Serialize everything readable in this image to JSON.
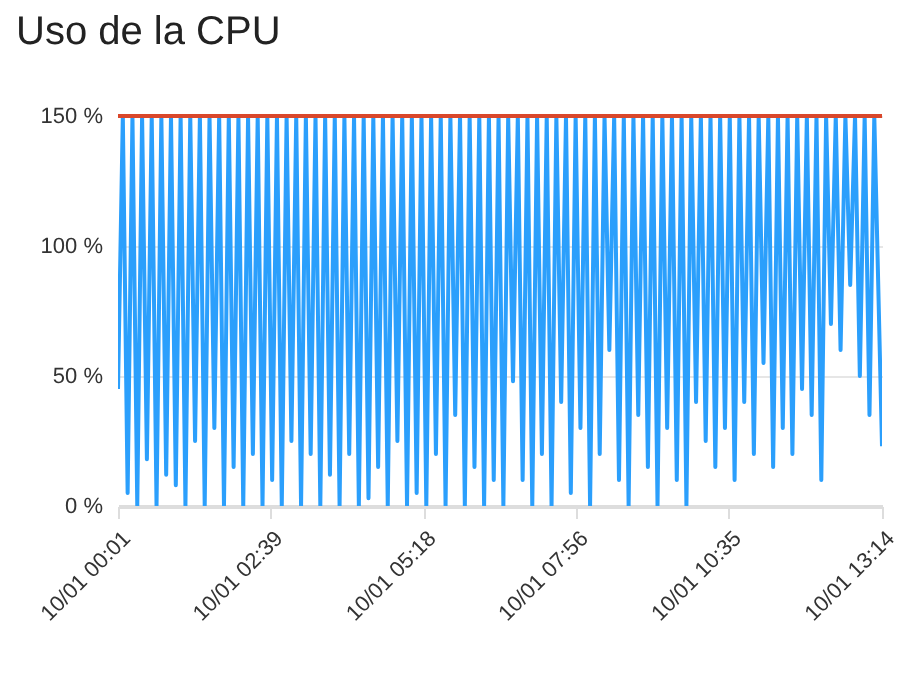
{
  "chart_data": {
    "type": "line",
    "title": "Uso de la CPU",
    "x": [
      "--10-01T00:01",
      "--10-01T00:06",
      "--10-01T00:11",
      "--10-01T00:16",
      "--10-01T00:21",
      "--10-01T00:26",
      "--10-01T00:31",
      "--10-01T00:36",
      "--10-01T00:41",
      "--10-01T00:46",
      "--10-01T00:51",
      "--10-01T00:56",
      "--10-01T01:01",
      "--10-01T01:06",
      "--10-01T01:11",
      "--10-01T01:16",
      "--10-01T01:21",
      "--10-01T01:26",
      "--10-01T01:31",
      "--10-01T01:36",
      "--10-01T01:41",
      "--10-01T01:46",
      "--10-01T01:51",
      "--10-01T01:56",
      "--10-01T02:01",
      "--10-01T02:06",
      "--10-01T02:11",
      "--10-01T02:16",
      "--10-01T02:21",
      "--10-01T02:26",
      "--10-01T02:31",
      "--10-01T02:36",
      "--10-01T02:41",
      "--10-01T02:46",
      "--10-01T02:51",
      "--10-01T02:56",
      "--10-01T03:01",
      "--10-01T03:06",
      "--10-01T03:11",
      "--10-01T03:16",
      "--10-01T03:21",
      "--10-01T03:26",
      "--10-01T03:31",
      "--10-01T03:36",
      "--10-01T03:41",
      "--10-01T03:46",
      "--10-01T03:51",
      "--10-01T03:56",
      "--10-01T04:01",
      "--10-01T04:06",
      "--10-01T04:11",
      "--10-01T04:16",
      "--10-01T04:21",
      "--10-01T04:26",
      "--10-01T04:31",
      "--10-01T04:36",
      "--10-01T04:41",
      "--10-01T04:46",
      "--10-01T04:51",
      "--10-01T04:56",
      "--10-01T05:01",
      "--10-01T05:06",
      "--10-01T05:11",
      "--10-01T05:16",
      "--10-01T05:21",
      "--10-01T05:26",
      "--10-01T05:31",
      "--10-01T05:36",
      "--10-01T05:41",
      "--10-01T05:46",
      "--10-01T05:51",
      "--10-01T05:56",
      "--10-01T06:01",
      "--10-01T06:06",
      "--10-01T06:11",
      "--10-01T06:16",
      "--10-01T06:21",
      "--10-01T06:26",
      "--10-01T06:31",
      "--10-01T06:36",
      "--10-01T06:41",
      "--10-01T06:46",
      "--10-01T06:51",
      "--10-01T06:56",
      "--10-01T07:01",
      "--10-01T07:06",
      "--10-01T07:11",
      "--10-01T07:16",
      "--10-01T07:21",
      "--10-01T07:26",
      "--10-01T07:31",
      "--10-01T07:36",
      "--10-01T07:41",
      "--10-01T07:46",
      "--10-01T07:51",
      "--10-01T07:56",
      "--10-01T08:01",
      "--10-01T08:06",
      "--10-01T08:11",
      "--10-01T08:16",
      "--10-01T08:21",
      "--10-01T08:26",
      "--10-01T08:31",
      "--10-01T08:36",
      "--10-01T08:41",
      "--10-01T08:46",
      "--10-01T08:51",
      "--10-01T08:56",
      "--10-01T09:01",
      "--10-01T09:06",
      "--10-01T09:11",
      "--10-01T09:16",
      "--10-01T09:21",
      "--10-01T09:26",
      "--10-01T09:31",
      "--10-01T09:36",
      "--10-01T09:41",
      "--10-01T09:46",
      "--10-01T09:51",
      "--10-01T09:56",
      "--10-01T10:01",
      "--10-01T10:06",
      "--10-01T10:11",
      "--10-01T10:16",
      "--10-01T10:21",
      "--10-01T10:26",
      "--10-01T10:31",
      "--10-01T10:36",
      "--10-01T10:41",
      "--10-01T10:46",
      "--10-01T10:51",
      "--10-01T10:56",
      "--10-01T11:01",
      "--10-01T11:06",
      "--10-01T11:11",
      "--10-01T11:16",
      "--10-01T11:21",
      "--10-01T11:26",
      "--10-01T11:31",
      "--10-01T11:36",
      "--10-01T11:41",
      "--10-01T11:46",
      "--10-01T11:51",
      "--10-01T11:56",
      "--10-01T12:01",
      "--10-01T12:06",
      "--10-01T12:11",
      "--10-01T12:16",
      "--10-01T12:21",
      "--10-01T12:26",
      "--10-01T12:31",
      "--10-01T12:36",
      "--10-01T12:41",
      "--10-01T12:46",
      "--10-01T12:51",
      "--10-01T12:56",
      "--10-01T13:01",
      "--10-01T13:06",
      "--10-01T13:14"
    ],
    "series": [
      {
        "color": "#2b9ffc",
        "values": [
          45,
          150,
          5,
          150,
          0,
          150,
          18,
          150,
          0,
          150,
          12,
          150,
          8,
          150,
          0,
          150,
          25,
          150,
          0,
          150,
          30,
          150,
          0,
          150,
          15,
          150,
          0,
          150,
          20,
          150,
          0,
          150,
          10,
          150,
          0,
          150,
          25,
          150,
          0,
          150,
          20,
          150,
          0,
          150,
          12,
          150,
          0,
          150,
          20,
          150,
          0,
          150,
          3,
          150,
          15,
          150,
          0,
          150,
          25,
          150,
          0,
          150,
          5,
          150,
          0,
          150,
          20,
          150,
          0,
          150,
          35,
          150,
          0,
          150,
          15,
          150,
          0,
          150,
          10,
          150,
          0,
          150,
          48,
          150,
          10,
          150,
          0,
          150,
          20,
          150,
          0,
          150,
          40,
          150,
          5,
          150,
          30,
          150,
          0,
          150,
          20,
          150,
          60,
          150,
          10,
          150,
          0,
          150,
          35,
          150,
          15,
          150,
          0,
          150,
          30,
          150,
          10,
          150,
          0,
          150,
          40,
          150,
          25,
          150,
          15,
          150,
          30,
          150,
          10,
          150,
          40,
          150,
          20,
          150,
          55,
          150,
          15,
          150,
          30,
          150,
          20,
          150,
          45,
          150,
          35,
          150,
          10,
          150,
          70,
          150,
          60,
          150,
          85,
          150,
          50,
          150,
          35,
          150,
          23
        ]
      }
    ],
    "xlim": [
      "--10-01T00:01",
      "--10-01T13:14"
    ],
    "xticks": [
      {
        "value": "--10-01T00:01",
        "label": "10/01 00:01"
      },
      {
        "value": "--10-01T02:39",
        "label": "10/01 02:39"
      },
      {
        "value": "--10-01T05:18",
        "label": "10/01 05:18"
      },
      {
        "value": "--10-01T07:56",
        "label": "10/01 07:56"
      },
      {
        "value": "--10-01T10:35",
        "label": "10/01 10:35"
      },
      {
        "value": "--10-01T13:14",
        "label": "10/01 13:14"
      }
    ],
    "ylim": [
      0,
      150
    ],
    "yticks": [
      {
        "value": 0,
        "label": "0 %"
      },
      {
        "value": 50,
        "label": "50 %"
      },
      {
        "value": 100,
        "label": "100 %"
      },
      {
        "value": 150,
        "label": "150 %"
      }
    ],
    "ref_lines": [
      {
        "axis": "y",
        "value": 150,
        "color": "#d9472b"
      }
    ],
    "grid": "y"
  }
}
